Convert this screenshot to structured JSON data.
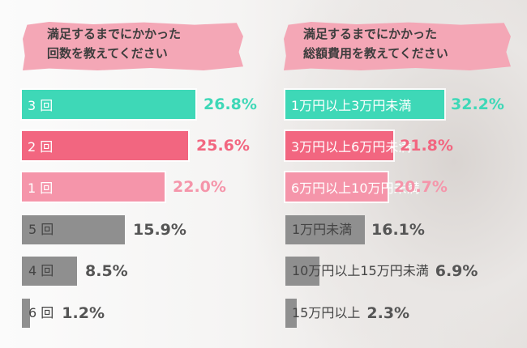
{
  "colors": {
    "teal": "#3ed8b7",
    "red": "#f26680",
    "pink": "#f595aa",
    "gray": "#8f8f8f",
    "title_bg": "#f4a7b6"
  },
  "chart_data": [
    {
      "type": "bar",
      "title": "満足するまでにかかった\n回数を教えてください",
      "categories": [
        "3 回",
        "2 回",
        "1 回",
        "5 回",
        "4 回",
        "6 回"
      ],
      "values": [
        26.8,
        25.6,
        22.0,
        15.9,
        8.5,
        1.2
      ],
      "value_labels": [
        "26.8%",
        "25.6%",
        "22.0%",
        "15.9%",
        "8.5%",
        "1.2%"
      ],
      "colors": [
        "#3ed8b7",
        "#f26680",
        "#f595aa",
        "#8f8f8f",
        "#8f8f8f",
        "#8f8f8f"
      ],
      "value_colors": [
        "#3ed8b7",
        "#f26680",
        "#f595aa",
        "#555555",
        "#555555",
        "#555555"
      ],
      "orientation": "horizontal"
    },
    {
      "type": "bar",
      "title": "満足するまでにかかった\n総額費用を教えてください",
      "categories": [
        "1万円以上3万円未満",
        "3万円以上6万円未満",
        "6万円以上10万円未満",
        "1万円未満",
        "10万円以上15万円未満",
        "15万円以上"
      ],
      "values": [
        32.2,
        21.8,
        20.7,
        16.1,
        6.9,
        2.3
      ],
      "value_labels": [
        "32.2%",
        "21.8%",
        "20.7%",
        "16.1%",
        "6.9%",
        "2.3%"
      ],
      "colors": [
        "#3ed8b7",
        "#f26680",
        "#f595aa",
        "#8f8f8f",
        "#8f8f8f",
        "#8f8f8f"
      ],
      "value_colors": [
        "#3ed8b7",
        "#f26680",
        "#f595aa",
        "#555555",
        "#555555",
        "#555555"
      ],
      "orientation": "horizontal"
    }
  ]
}
